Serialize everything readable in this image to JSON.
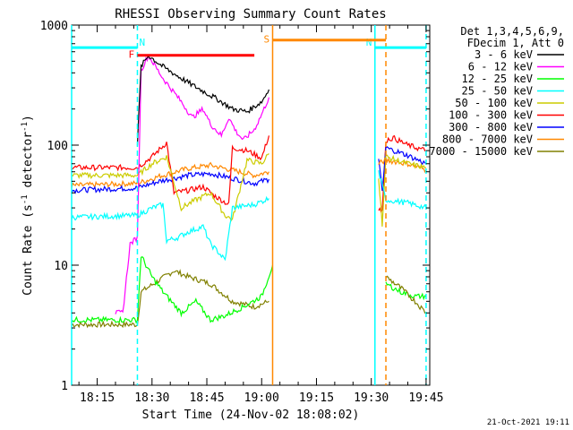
{
  "chart_data": {
    "type": "line",
    "title": "RHESSI Observing Summary Count Rates",
    "xlabel": "Start Time (24-Nov-02 18:08:02)",
    "ylabel_main": "Count Rate (s",
    "ylabel_sup": "-1",
    "ylabel_mid": " detector",
    "ylabel_end": ")",
    "yscale": "log",
    "ylim": [
      1,
      1000
    ],
    "xlim": [
      "18:08",
      "19:46"
    ],
    "x_ticks": [
      "18:15",
      "18:30",
      "18:45",
      "19:00",
      "19:15",
      "19:30",
      "19:45"
    ],
    "y_ticks": [
      "1",
      "10",
      "100",
      "1000"
    ],
    "grid": false,
    "legend_position": "right",
    "legend_header": [
      "Det 1,3,4,5,6,9,",
      "FDecim 1, Att 0"
    ],
    "footer_date": "21-Oct-2021 19:11",
    "series": [
      {
        "name": "3 - 6 keV",
        "color": "#000000",
        "x": [
          "18:26",
          "18:27",
          "18:29",
          "18:33",
          "18:40",
          "18:48",
          "18:52",
          "18:56",
          "19:00",
          "19:02"
        ],
        "values": [
          100,
          450,
          560,
          450,
          330,
          240,
          200,
          190,
          230,
          290
        ]
      },
      {
        "name": "6 - 12 keV",
        "color": "#ff00ff",
        "x": [
          "18:20",
          "18:22",
          "18:24",
          "18:26",
          "18:27",
          "18:29",
          "18:33",
          "18:38",
          "18:41",
          "18:44",
          "18:46",
          "18:49",
          "18:51",
          "18:53",
          "18:55",
          "18:58",
          "19:00",
          "19:02"
        ],
        "values": [
          4,
          4,
          15,
          17,
          420,
          560,
          360,
          230,
          170,
          200,
          150,
          120,
          170,
          130,
          110,
          135,
          180,
          250
        ]
      },
      {
        "name": "12 - 25 keV",
        "color": "#00ff00",
        "x": [
          "18:08",
          "18:26",
          "18:27",
          "18:30",
          "18:33",
          "18:38",
          "18:42",
          "18:46",
          "18:50",
          "18:55",
          "19:00",
          "19:03"
        ],
        "values": [
          3.5,
          3.5,
          12,
          8,
          6,
          4,
          5,
          3.5,
          3.8,
          4.5,
          5.5,
          10
        ]
      },
      {
        "name": "25 - 50 keV",
        "color": "#00ffff",
        "x": [
          "18:08",
          "18:26",
          "18:30",
          "18:33",
          "18:34",
          "18:37",
          "18:40",
          "18:44",
          "18:46",
          "18:48",
          "18:50",
          "18:52",
          "18:58",
          "19:02"
        ],
        "values": [
          25,
          26,
          30,
          32,
          16,
          17,
          19,
          21,
          15,
          13,
          11,
          30,
          32,
          36
        ]
      },
      {
        "name": "50 - 100 keV",
        "color": "#cccc00",
        "x": [
          "18:08",
          "18:26",
          "18:30",
          "18:34",
          "18:38",
          "18:42",
          "18:46",
          "18:50",
          "18:52",
          "18:56",
          "19:00",
          "19:02"
        ],
        "values": [
          56,
          56,
          70,
          80,
          30,
          35,
          40,
          26,
          24,
          75,
          70,
          85
        ]
      },
      {
        "name": "100 - 300 keV",
        "color": "#ff0000",
        "x": [
          "18:08",
          "18:26",
          "18:30",
          "18:34",
          "18:36",
          "18:40",
          "18:44",
          "18:47",
          "18:51",
          "18:52",
          "18:56",
          "19:00",
          "19:02"
        ],
        "values": [
          65,
          65,
          80,
          105,
          40,
          42,
          45,
          38,
          32,
          95,
          90,
          78,
          120
        ]
      },
      {
        "name": "300 - 800 keV",
        "color": "#0000ff",
        "x": [
          "18:08",
          "18:26",
          "18:32",
          "18:40",
          "18:46",
          "18:52",
          "18:58",
          "19:02"
        ],
        "values": [
          42,
          44,
          50,
          56,
          58,
          53,
          48,
          52
        ]
      },
      {
        "name": "800 - 7000 keV",
        "color": "#ff8800",
        "x": [
          "18:08",
          "18:26",
          "18:32",
          "18:40",
          "18:46",
          "18:52",
          "18:58",
          "19:02"
        ],
        "values": [
          46,
          48,
          55,
          64,
          68,
          62,
          56,
          60
        ]
      },
      {
        "name": "7000 - 15000 keV",
        "color": "#808000",
        "x": [
          "18:08",
          "18:26",
          "18:27",
          "18:32",
          "18:36",
          "18:40",
          "18:46",
          "18:52",
          "18:58",
          "19:02"
        ],
        "values": [
          3.2,
          3.2,
          6,
          7.5,
          9,
          8,
          7,
          5,
          4.5,
          5
        ]
      }
    ],
    "post_gap_series": [
      {
        "name": "100 - 300 keV",
        "color": "#ff0000",
        "x": [
          "19:32",
          "19:33",
          "19:34",
          "19:36",
          "19:40",
          "19:45"
        ],
        "values": [
          30,
          28,
          110,
          115,
          100,
          90
        ]
      },
      {
        "name": "300 - 800 keV",
        "color": "#0000ff",
        "x": [
          "19:32",
          "19:33",
          "19:34",
          "19:40",
          "19:45"
        ],
        "values": [
          80,
          40,
          95,
          82,
          70
        ]
      },
      {
        "name": "800 - 7000 keV",
        "color": "#ff8800",
        "x": [
          "19:32",
          "19:34",
          "19:40",
          "19:45"
        ],
        "values": [
          70,
          75,
          70,
          62
        ]
      },
      {
        "name": "50 - 100 keV",
        "color": "#cccc00",
        "x": [
          "19:32",
          "19:33",
          "19:34",
          "19:40",
          "19:45"
        ],
        "values": [
          55,
          22,
          80,
          70,
          65
        ]
      },
      {
        "name": "25 - 50 keV",
        "color": "#00ffff",
        "x": [
          "19:32",
          "19:34",
          "19:40",
          "19:45"
        ],
        "values": [
          60,
          35,
          33,
          30
        ]
      },
      {
        "name": "12 - 25 keV",
        "color": "#00ff00",
        "x": [
          "19:34",
          "19:38",
          "19:42",
          "19:45"
        ],
        "values": [
          7,
          6,
          5.5,
          5.5
        ]
      },
      {
        "name": "7000 - 15000 keV",
        "color": "#808000",
        "x": [
          "19:34",
          "19:38",
          "19:42",
          "19:45"
        ],
        "values": [
          8,
          6.5,
          5,
          4
        ]
      }
    ],
    "annotations": [
      {
        "label": "N",
        "color": "#00ffff",
        "x_start": "18:08",
        "x_end": "18:26",
        "value": 650
      },
      {
        "label": "N",
        "color": "#00ffff",
        "x_start": "19:31",
        "x_end": "19:45",
        "value": 650
      },
      {
        "label": "F",
        "color": "#ff0000",
        "x_start": "18:26",
        "x_end": "18:58",
        "value": 560
      },
      {
        "label": "S",
        "color": "#ff8800",
        "x_start": "19:03",
        "x_end": "19:34",
        "value": 750
      }
    ],
    "vertical_markers": [
      {
        "x": "18:08",
        "color": "#00ffff",
        "style": "solid"
      },
      {
        "x": "18:26",
        "color": "#00ffff",
        "style": "dashed"
      },
      {
        "x": "19:03",
        "color": "#ff8800",
        "style": "solid"
      },
      {
        "x": "19:31",
        "color": "#00ffff",
        "style": "solid"
      },
      {
        "x": "19:34",
        "color": "#ff8800",
        "style": "dashed"
      },
      {
        "x": "19:45",
        "color": "#00ffff",
        "style": "dashed"
      }
    ]
  }
}
